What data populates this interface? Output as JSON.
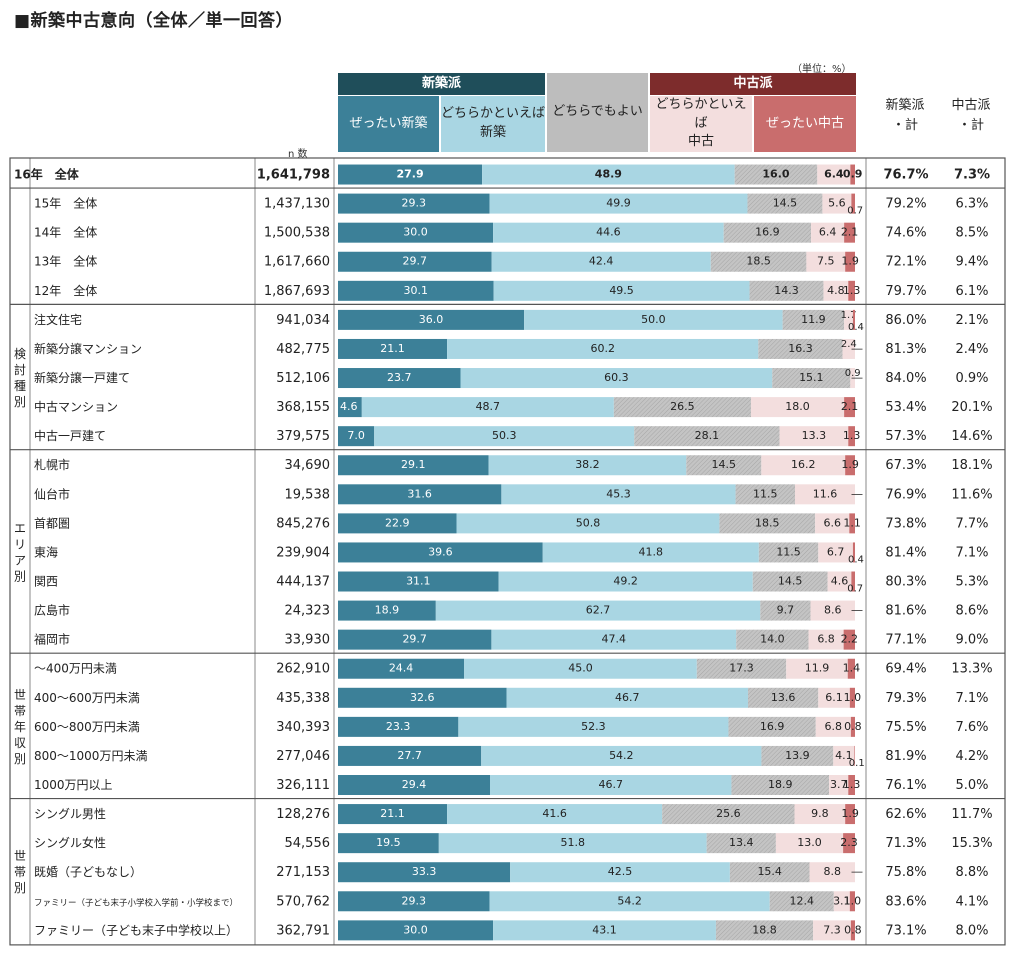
{
  "title": "■新築中古意向（全体／単一回答）",
  "unit": "（単位：%）",
  "n_label": "n 数",
  "header": {
    "group_shinchiku": "新築派",
    "group_chuko": "中古派",
    "cat0": "ぜったい新築",
    "cat1": "どちらかといえば\n新築",
    "cat2": "どちらでもよい",
    "cat3": "どちらかといえば\n中古",
    "cat4": "ぜったい中古",
    "total_shinchiku": "新築派\n・計",
    "total_chuko": "中古派\n・計"
  },
  "colors": {
    "cat0": "#3c8098",
    "cat1": "#a9d6e3",
    "cat2": "#bdbdbd",
    "cat3": "#f3dede",
    "cat4": "#c96d6d",
    "group_shinchiku": "#1f4e5a",
    "group_chuko": "#7d2c2c",
    "grid": "#555555"
  },
  "chart_data": {
    "type": "bar",
    "stacked": "horizontal-100%",
    "series_names": [
      "ぜったい新築",
      "どちらかといえば新築",
      "どちらでもよい",
      "どちらかといえば中古",
      "ぜったい中古"
    ],
    "groups": [
      {
        "label": "",
        "rows": [
          0
        ]
      },
      {
        "label": "",
        "rows": [
          1,
          2,
          3,
          4
        ]
      },
      {
        "label": "検討種別",
        "rows": [
          5,
          6,
          7,
          8,
          9
        ]
      },
      {
        "label": "エリア別",
        "rows": [
          10,
          11,
          12,
          13,
          14,
          15,
          16
        ]
      },
      {
        "label": "世帯年収別",
        "rows": [
          17,
          18,
          19,
          20,
          21
        ]
      },
      {
        "label": "世帯別",
        "rows": [
          22,
          23,
          24,
          25,
          26
        ]
      }
    ],
    "rows": [
      {
        "label": "16年　全体",
        "n": "1,641,798",
        "values": [
          27.9,
          48.9,
          16.0,
          6.4,
          0.9
        ],
        "labels": [
          "27.9",
          "48.9",
          "16.0",
          "6.4",
          "0.9"
        ],
        "total_shin": "76.7%",
        "total_chuko": "7.3%",
        "bold": true
      },
      {
        "label": "15年　全体",
        "n": "1,437,130",
        "values": [
          29.3,
          49.9,
          14.5,
          5.6,
          0.7
        ],
        "labels": [
          "29.3",
          "49.9",
          "14.5",
          "5.6",
          "0.7"
        ],
        "total_shin": "79.2%",
        "total_chuko": "6.3%"
      },
      {
        "label": "14年　全体",
        "n": "1,500,538",
        "values": [
          30.0,
          44.6,
          16.9,
          6.4,
          2.1
        ],
        "labels": [
          "30.0",
          "44.6",
          "16.9",
          "6.4",
          "2.1"
        ],
        "total_shin": "74.6%",
        "total_chuko": "8.5%"
      },
      {
        "label": "13年　全体",
        "n": "1,617,660",
        "values": [
          29.7,
          42.4,
          18.5,
          7.5,
          1.9
        ],
        "labels": [
          "29.7",
          "42.4",
          "18.5",
          "7.5",
          "1.9"
        ],
        "total_shin": "72.1%",
        "total_chuko": "9.4%"
      },
      {
        "label": "12年　全体",
        "n": "1,867,693",
        "values": [
          30.1,
          49.5,
          14.3,
          4.8,
          1.3
        ],
        "labels": [
          "30.1",
          "49.5",
          "14.3",
          "4.8",
          "1.3"
        ],
        "total_shin": "79.7%",
        "total_chuko": "6.1%"
      },
      {
        "label": "注文住宅",
        "n": "941,034",
        "values": [
          36.0,
          50.0,
          11.9,
          1.7,
          0.4
        ],
        "labels": [
          "36.0",
          "50.0",
          "11.9",
          "1.7",
          "0.4"
        ],
        "total_shin": "86.0%",
        "total_chuko": "2.1%"
      },
      {
        "label": "新築分譲マンション",
        "n": "482,775",
        "values": [
          21.1,
          60.2,
          16.3,
          2.4,
          0
        ],
        "labels": [
          "21.1",
          "60.2",
          "16.3",
          "2.4",
          "―"
        ],
        "total_shin": "81.3%",
        "total_chuko": "2.4%"
      },
      {
        "label": "新築分譲一戸建て",
        "n": "512,106",
        "values": [
          23.7,
          60.3,
          15.1,
          0.9,
          0
        ],
        "labels": [
          "23.7",
          "60.3",
          "15.1",
          "0.9",
          "―"
        ],
        "total_shin": "84.0%",
        "total_chuko": "0.9%"
      },
      {
        "label": "中古マンション",
        "n": "368,155",
        "values": [
          4.6,
          48.7,
          26.5,
          18.0,
          2.1
        ],
        "labels": [
          "4.6",
          "48.7",
          "26.5",
          "18.0",
          "2.1"
        ],
        "total_shin": "53.4%",
        "total_chuko": "20.1%"
      },
      {
        "label": "中古一戸建て",
        "n": "379,575",
        "values": [
          7.0,
          50.3,
          28.1,
          13.3,
          1.3
        ],
        "labels": [
          "7.0",
          "50.3",
          "28.1",
          "13.3",
          "1.3"
        ],
        "total_shin": "57.3%",
        "total_chuko": "14.6%"
      },
      {
        "label": "札幌市",
        "n": "34,690",
        "values": [
          29.1,
          38.2,
          14.5,
          16.2,
          1.9
        ],
        "labels": [
          "29.1",
          "38.2",
          "14.5",
          "16.2",
          "1.9"
        ],
        "total_shin": "67.3%",
        "total_chuko": "18.1%"
      },
      {
        "label": "仙台市",
        "n": "19,538",
        "values": [
          31.6,
          45.3,
          11.5,
          11.6,
          0
        ],
        "labels": [
          "31.6",
          "45.3",
          "11.5",
          "11.6",
          "―"
        ],
        "total_shin": "76.9%",
        "total_chuko": "11.6%"
      },
      {
        "label": "首都圏",
        "n": "845,276",
        "values": [
          22.9,
          50.8,
          18.5,
          6.6,
          1.1
        ],
        "labels": [
          "22.9",
          "50.8",
          "18.5",
          "6.6",
          "1.1"
        ],
        "total_shin": "73.8%",
        "total_chuko": "7.7%"
      },
      {
        "label": "東海",
        "n": "239,904",
        "values": [
          39.6,
          41.8,
          11.5,
          6.7,
          0.4
        ],
        "labels": [
          "39.6",
          "41.8",
          "11.5",
          "6.7",
          "0.4"
        ],
        "total_shin": "81.4%",
        "total_chuko": "7.1%"
      },
      {
        "label": "関西",
        "n": "444,137",
        "values": [
          31.1,
          49.2,
          14.5,
          4.6,
          0.7
        ],
        "labels": [
          "31.1",
          "49.2",
          "14.5",
          "4.6",
          "0.7"
        ],
        "total_shin": "80.3%",
        "total_chuko": "5.3%"
      },
      {
        "label": "広島市",
        "n": "24,323",
        "values": [
          18.9,
          62.7,
          9.7,
          8.6,
          0
        ],
        "labels": [
          "18.9",
          "62.7",
          "9.7",
          "8.6",
          "―"
        ],
        "total_shin": "81.6%",
        "total_chuko": "8.6%"
      },
      {
        "label": "福岡市",
        "n": "33,930",
        "values": [
          29.7,
          47.4,
          14.0,
          6.8,
          2.2
        ],
        "labels": [
          "29.7",
          "47.4",
          "14.0",
          "6.8",
          "2.2"
        ],
        "total_shin": "77.1%",
        "total_chuko": "9.0%"
      },
      {
        "label": "～400万円未満",
        "n": "262,910",
        "values": [
          24.4,
          45.0,
          17.3,
          11.9,
          1.4
        ],
        "labels": [
          "24.4",
          "45.0",
          "17.3",
          "11.9",
          "1.4"
        ],
        "total_shin": "69.4%",
        "total_chuko": "13.3%"
      },
      {
        "label": "400～600万円未満",
        "n": "435,338",
        "values": [
          32.6,
          46.7,
          13.6,
          6.1,
          1.0
        ],
        "labels": [
          "32.6",
          "46.7",
          "13.6",
          "6.1",
          "1.0"
        ],
        "total_shin": "79.3%",
        "total_chuko": "7.1%"
      },
      {
        "label": "600～800万円未満",
        "n": "340,393",
        "values": [
          23.3,
          52.3,
          16.9,
          6.8,
          0.8
        ],
        "labels": [
          "23.3",
          "52.3",
          "16.9",
          "6.8",
          "0.8"
        ],
        "total_shin": "75.5%",
        "total_chuko": "7.6%"
      },
      {
        "label": "800～1000万円未満",
        "n": "277,046",
        "values": [
          27.7,
          54.2,
          13.9,
          4.1,
          0.1
        ],
        "labels": [
          "27.7",
          "54.2",
          "13.9",
          "4.1",
          "0.1"
        ],
        "total_shin": "81.9%",
        "total_chuko": "4.2%"
      },
      {
        "label": "1000万円以上",
        "n": "326,111",
        "values": [
          29.4,
          46.7,
          18.9,
          3.7,
          1.3
        ],
        "labels": [
          "29.4",
          "46.7",
          "18.9",
          "3.7",
          "1.3"
        ],
        "total_shin": "76.1%",
        "total_chuko": "5.0%"
      },
      {
        "label": "シングル男性",
        "n": "128,276",
        "values": [
          21.1,
          41.6,
          25.6,
          9.8,
          1.9
        ],
        "labels": [
          "21.1",
          "41.6",
          "25.6",
          "9.8",
          "1.9"
        ],
        "total_shin": "62.6%",
        "total_chuko": "11.7%"
      },
      {
        "label": "シングル女性",
        "n": "54,556",
        "values": [
          19.5,
          51.8,
          13.4,
          13.0,
          2.3
        ],
        "labels": [
          "19.5",
          "51.8",
          "13.4",
          "13.0",
          "2.3"
        ],
        "total_shin": "71.3%",
        "total_chuko": "15.3%"
      },
      {
        "label": "既婚（子どもなし）",
        "n": "271,153",
        "values": [
          33.3,
          42.5,
          15.4,
          8.8,
          0
        ],
        "labels": [
          "33.3",
          "42.5",
          "15.4",
          "8.8",
          "―"
        ],
        "total_shin": "75.8%",
        "total_chuko": "8.8%"
      },
      {
        "label": "ファミリー（子ども末子小学校入学前・小学校まで）",
        "n": "570,762",
        "values": [
          29.3,
          54.2,
          12.4,
          3.1,
          1.0
        ],
        "labels": [
          "29.3",
          "54.2",
          "12.4",
          "3.1",
          "1.0"
        ],
        "total_shin": "83.6%",
        "total_chuko": "4.1%",
        "small": true
      },
      {
        "label": "ファミリー（子ども末子中学校以上）",
        "n": "362,791",
        "values": [
          30.0,
          43.1,
          18.8,
          7.3,
          0.8
        ],
        "labels": [
          "30.0",
          "43.1",
          "18.8",
          "7.3",
          "0.8"
        ],
        "total_shin": "73.1%",
        "total_chuko": "8.0%"
      }
    ]
  }
}
